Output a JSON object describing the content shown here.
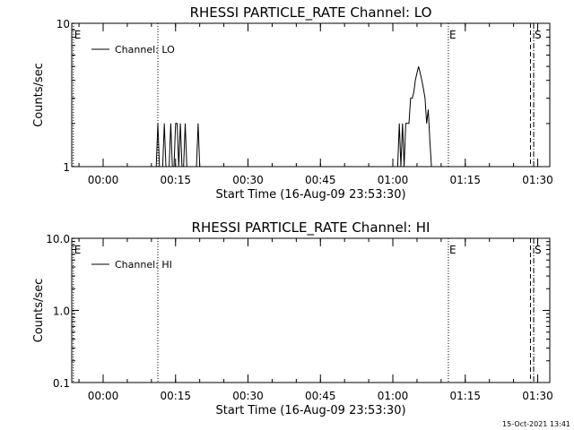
{
  "footer": {
    "timestamp": "15-Oct-2021 13:41"
  },
  "chart_data": [
    {
      "type": "line",
      "title": "RHESSI PARTICLE_RATE Channel: LO",
      "xlabel": "Start Time (16-Aug-09 23:53:30)",
      "ylabel": "Counts/sec",
      "yscale": "log",
      "ylim": [
        1,
        10
      ],
      "yticks": [
        {
          "v": 1,
          "l": "1"
        },
        {
          "v": 10,
          "l": "10"
        }
      ],
      "xlim": [
        "23:53:30",
        "01:32:30"
      ],
      "xticks": [
        {
          "t": "00:00",
          "l": "00:00"
        },
        {
          "t": "00:15",
          "l": "00:15"
        },
        {
          "t": "00:30",
          "l": "00:30"
        },
        {
          "t": "00:45",
          "l": "00:45"
        },
        {
          "t": "01:00",
          "l": "01:00"
        },
        {
          "t": "01:15",
          "l": "01:15"
        },
        {
          "t": "01:30",
          "l": "01:30"
        }
      ],
      "legend": "top-left",
      "grid": false,
      "series": [
        {
          "name": "Channel: LO",
          "color": "#000000",
          "x": [
            "00:10:30",
            "00:11:00",
            "00:11:20",
            "00:11:40",
            "00:12:00",
            "00:12:20",
            "00:12:40",
            "00:13:00",
            "00:13:20",
            "00:13:40",
            "00:14:00",
            "00:14:20",
            "00:14:40",
            "00:15:00",
            "00:15:20",
            "00:15:40",
            "00:16:00",
            "00:16:20",
            "00:16:40",
            "00:17:00",
            "00:17:20",
            "00:17:40",
            "00:18:00",
            "00:18:20",
            "00:18:40",
            "00:19:00",
            "00:19:20",
            "00:19:40",
            "00:20:00",
            "00:20:20",
            "00:20:40",
            "00:21:00",
            "01:00:30",
            "01:01:00",
            "01:01:20",
            "01:01:40",
            "01:02:00",
            "01:02:20",
            "01:02:40",
            "01:03:00",
            "01:03:20",
            "01:03:40",
            "01:04:00",
            "01:04:20",
            "01:04:40",
            "01:05:00",
            "01:05:20",
            "01:05:40",
            "01:06:00",
            "01:06:20",
            "01:06:40",
            "01:07:00",
            "01:07:20",
            "01:07:40",
            "01:08:00",
            "01:08:20"
          ],
          "values": [
            0.9,
            1,
            2,
            1,
            1,
            1,
            2,
            1,
            1,
            1,
            2,
            1,
            1,
            2,
            2,
            1,
            2,
            1,
            1,
            2,
            1,
            1,
            1,
            1,
            1,
            1,
            1,
            2,
            1,
            1,
            1,
            0.9,
            0.9,
            1,
            2,
            1,
            2,
            1,
            2,
            2,
            2,
            3,
            3,
            3.3,
            4,
            4.5,
            5,
            4.5,
            4,
            3.5,
            3,
            2,
            2.5,
            1.5,
            1,
            0.9
          ]
        }
      ],
      "vlines": [
        {
          "t": "23:53:50",
          "style": "dotted",
          "label": "E"
        },
        {
          "t": "00:11:20",
          "style": "dotted",
          "label": ""
        },
        {
          "t": "01:11:30",
          "style": "dotted",
          "label": "E"
        },
        {
          "t": "01:28:30",
          "style": "dashed",
          "label": ""
        },
        {
          "t": "01:29:10",
          "style": "dashdot",
          "label": "S"
        }
      ]
    },
    {
      "type": "line",
      "title": "RHESSI PARTICLE_RATE Channel: HI",
      "xlabel": "Start Time (16-Aug-09 23:53:30)",
      "ylabel": "Counts/sec",
      "yscale": "log",
      "ylim": [
        0.1,
        10
      ],
      "yticks": [
        {
          "v": 0.1,
          "l": "0.1"
        },
        {
          "v": 1,
          "l": "1.0"
        },
        {
          "v": 10,
          "l": "10.0"
        }
      ],
      "xlim": [
        "23:53:30",
        "01:32:30"
      ],
      "xticks": [
        {
          "t": "00:00",
          "l": "00:00"
        },
        {
          "t": "00:15",
          "l": "00:15"
        },
        {
          "t": "00:30",
          "l": "00:30"
        },
        {
          "t": "00:45",
          "l": "00:45"
        },
        {
          "t": "01:00",
          "l": "01:00"
        },
        {
          "t": "01:15",
          "l": "01:15"
        },
        {
          "t": "01:30",
          "l": "01:30"
        }
      ],
      "legend": "top-left",
      "grid": false,
      "series": [
        {
          "name": "Channel: HI",
          "color": "#000000",
          "x": [],
          "values": []
        }
      ],
      "vlines": [
        {
          "t": "23:53:50",
          "style": "dotted",
          "label": "E"
        },
        {
          "t": "00:11:20",
          "style": "dotted",
          "label": ""
        },
        {
          "t": "01:11:30",
          "style": "dotted",
          "label": "E"
        },
        {
          "t": "01:28:30",
          "style": "dashed",
          "label": ""
        },
        {
          "t": "01:29:10",
          "style": "dashdot",
          "label": "S"
        }
      ]
    }
  ]
}
